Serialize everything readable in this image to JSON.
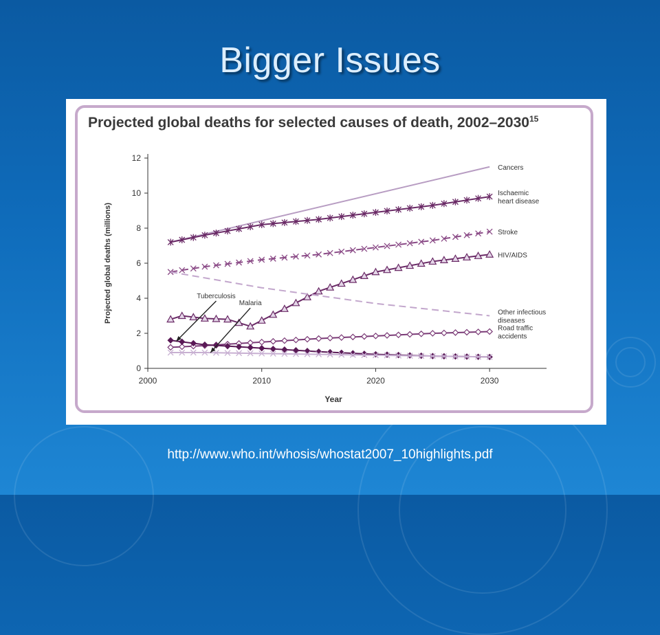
{
  "slide": {
    "title": "Bigger Issues",
    "source_url": "http://www.who.int/whosis/whostat2007_10highlights.pdf"
  },
  "chart_data": {
    "type": "line",
    "title": "Projected global deaths for selected causes of death, 2002–2030",
    "title_superscript": "15",
    "xlabel": "Year",
    "ylabel": "Projected global deaths (millions)",
    "xlim": [
      2000,
      2035
    ],
    "ylim": [
      0,
      12
    ],
    "xticks": [
      2000,
      2010,
      2020,
      2030
    ],
    "yticks": [
      0,
      2,
      4,
      6,
      8,
      10,
      12
    ],
    "grid": false,
    "legend": "inline labels at right end of lines",
    "series": [
      {
        "name": "Cancers",
        "color": "#b79cc2",
        "style": "solid",
        "marker": "none",
        "x": [
          2002,
          2030
        ],
        "y": [
          7.2,
          11.5
        ]
      },
      {
        "name": "Ischaemic heart disease",
        "color": "#6a2a66",
        "style": "solid",
        "marker": "star",
        "x": [
          2002,
          2005,
          2010,
          2015,
          2020,
          2025,
          2030
        ],
        "y": [
          7.2,
          7.6,
          8.2,
          8.5,
          8.9,
          9.3,
          9.8
        ]
      },
      {
        "name": "Stroke",
        "color": "#8a4a86",
        "style": "dashed",
        "marker": "x",
        "x": [
          2002,
          2005,
          2010,
          2015,
          2020,
          2025,
          2030
        ],
        "y": [
          5.5,
          5.8,
          6.2,
          6.5,
          6.9,
          7.3,
          7.8
        ]
      },
      {
        "name": "HIV/AIDS",
        "color": "#6a2a66",
        "style": "solid",
        "marker": "triangle",
        "x": [
          2002,
          2003,
          2005,
          2007,
          2009,
          2012,
          2015,
          2020,
          2025,
          2030
        ],
        "y": [
          2.8,
          3.0,
          2.85,
          2.8,
          2.4,
          3.4,
          4.4,
          5.5,
          6.1,
          6.5
        ]
      },
      {
        "name": "Other infectious diseases",
        "color": "#c2a6cc",
        "style": "dashed",
        "marker": "none",
        "x": [
          2002,
          2010,
          2020,
          2030
        ],
        "y": [
          5.5,
          4.6,
          3.7,
          3.0
        ]
      },
      {
        "name": "Road traffic accidents",
        "color": "#7a3a76",
        "style": "solid",
        "marker": "diamond-open",
        "x": [
          2002,
          2005,
          2010,
          2015,
          2020,
          2025,
          2030
        ],
        "y": [
          1.2,
          1.3,
          1.5,
          1.7,
          1.85,
          2.0,
          2.1
        ]
      },
      {
        "name": "Tuberculosis",
        "color": "#5a1a56",
        "style": "solid",
        "marker": "diamond-filled",
        "x": [
          2002,
          2005,
          2010,
          2015,
          2020,
          2025,
          2030
        ],
        "y": [
          1.6,
          1.35,
          1.15,
          0.95,
          0.8,
          0.7,
          0.65
        ]
      },
      {
        "name": "Malaria",
        "color": "#c8b0d2",
        "style": "solid",
        "marker": "x",
        "x": [
          2002,
          2005,
          2010,
          2015,
          2020,
          2025,
          2030
        ],
        "y": [
          0.9,
          0.9,
          0.85,
          0.8,
          0.75,
          0.7,
          0.65
        ]
      }
    ],
    "annotations": [
      {
        "text": "Tuberculosis",
        "points_to": {
          "x": 2002.5,
          "y": 1.55
        },
        "text_at": {
          "x": 2006,
          "y": 4.0
        }
      },
      {
        "text": "Malaria",
        "points_to": {
          "x": 2005.5,
          "y": 0.9
        },
        "text_at": {
          "x": 2009,
          "y": 3.6
        }
      }
    ],
    "end_labels": [
      {
        "series": "Cancers",
        "lines": [
          "Cancers"
        ]
      },
      {
        "series": "Ischaemic heart disease",
        "lines": [
          "Ischaemic",
          "heart disease"
        ]
      },
      {
        "series": "Stroke",
        "lines": [
          "Stroke"
        ]
      },
      {
        "series": "HIV/AIDS",
        "lines": [
          "HIV/AIDS"
        ]
      },
      {
        "series": "Other infectious diseases",
        "lines": [
          "Other infectious",
          "diseases"
        ]
      },
      {
        "series": "Road traffic accidents",
        "lines": [
          "Road traffic",
          "accidents"
        ]
      }
    ]
  }
}
